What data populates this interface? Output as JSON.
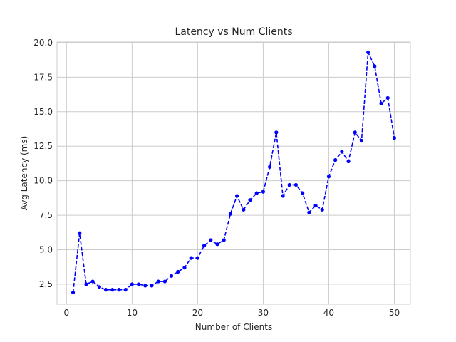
{
  "chart_data": {
    "type": "line",
    "title": "Latency vs Num Clients",
    "xlabel": "Number of Clients",
    "ylabel": "Avg Latency (ms)",
    "xlim": [
      -1.45,
      52.45
    ],
    "ylim": [
      1.05,
      20.05
    ],
    "x_ticks": [
      0,
      10,
      20,
      30,
      40,
      50
    ],
    "y_ticks": [
      2.5,
      5.0,
      7.5,
      10.0,
      12.5,
      15.0,
      17.5,
      20.0
    ],
    "x_tick_labels": [
      "0",
      "10",
      "20",
      "30",
      "40",
      "50"
    ],
    "y_tick_labels": [
      "2.5",
      "5.0",
      "7.5",
      "10.0",
      "12.5",
      "15.0",
      "17.5",
      "20.0"
    ],
    "grid": true,
    "series": [
      {
        "color": "#0000ff",
        "line_style": "dashed",
        "marker": "circle",
        "x": [
          1,
          2,
          3,
          4,
          5,
          6,
          7,
          8,
          9,
          10,
          11,
          12,
          13,
          14,
          15,
          16,
          17,
          18,
          19,
          20,
          21,
          22,
          23,
          24,
          25,
          26,
          27,
          28,
          29,
          30,
          31,
          32,
          33,
          34,
          35,
          36,
          37,
          38,
          39,
          40,
          41,
          42,
          43,
          44,
          45,
          46,
          47,
          48,
          49,
          50
        ],
        "y": [
          1.9,
          6.2,
          2.5,
          2.7,
          2.3,
          2.1,
          2.1,
          2.1,
          2.1,
          2.5,
          2.5,
          2.4,
          2.4,
          2.7,
          2.7,
          3.1,
          3.4,
          3.7,
          4.4,
          4.4,
          5.3,
          5.7,
          5.4,
          5.7,
          7.6,
          8.9,
          7.9,
          8.6,
          9.1,
          9.2,
          11.0,
          13.5,
          8.9,
          9.7,
          9.7,
          9.1,
          7.7,
          8.2,
          7.9,
          10.3,
          11.5,
          12.1,
          11.4,
          13.5,
          12.9,
          19.3,
          18.3,
          15.6,
          16.0,
          13.1
        ]
      }
    ]
  }
}
